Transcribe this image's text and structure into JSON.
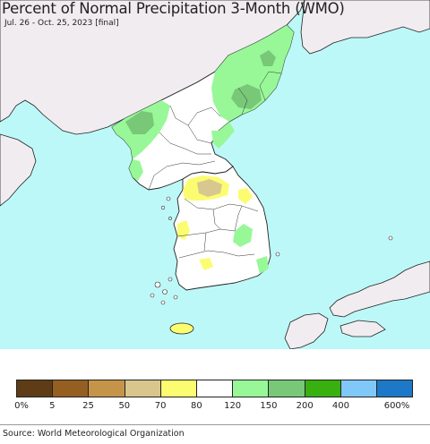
{
  "map": {
    "title": "Percent of Normal Precipitation 3-Month (WMO)",
    "period": "Jul. 26 - Oct. 25, 2023 [final]",
    "colors": {
      "sea": "#bdf8f8",
      "foreign_land": "#f0ecf0",
      "neutral_land": "#ffffff",
      "light_green": "#98f898",
      "mid_green": "#78c878",
      "yellow": "#fcfc70",
      "tan": "#d8c890",
      "borders": "#222222"
    }
  },
  "legend": {
    "swatches": [
      {
        "color": "#5e3d16"
      },
      {
        "color": "#965f22"
      },
      {
        "color": "#c49548"
      },
      {
        "color": "#d8c68c"
      },
      {
        "color": "#fcfc70"
      },
      {
        "color": "#ffffff"
      },
      {
        "color": "#98f898"
      },
      {
        "color": "#78c878"
      },
      {
        "color": "#38b010"
      },
      {
        "color": "#80c8f8"
      },
      {
        "color": "#1e78c8"
      }
    ],
    "ticks": [
      "0%",
      "5",
      "25",
      "50",
      "70",
      "80",
      "120",
      "150",
      "200",
      "400",
      "600%"
    ]
  },
  "footer": {
    "source": "Source: World Meteorological Organization"
  }
}
